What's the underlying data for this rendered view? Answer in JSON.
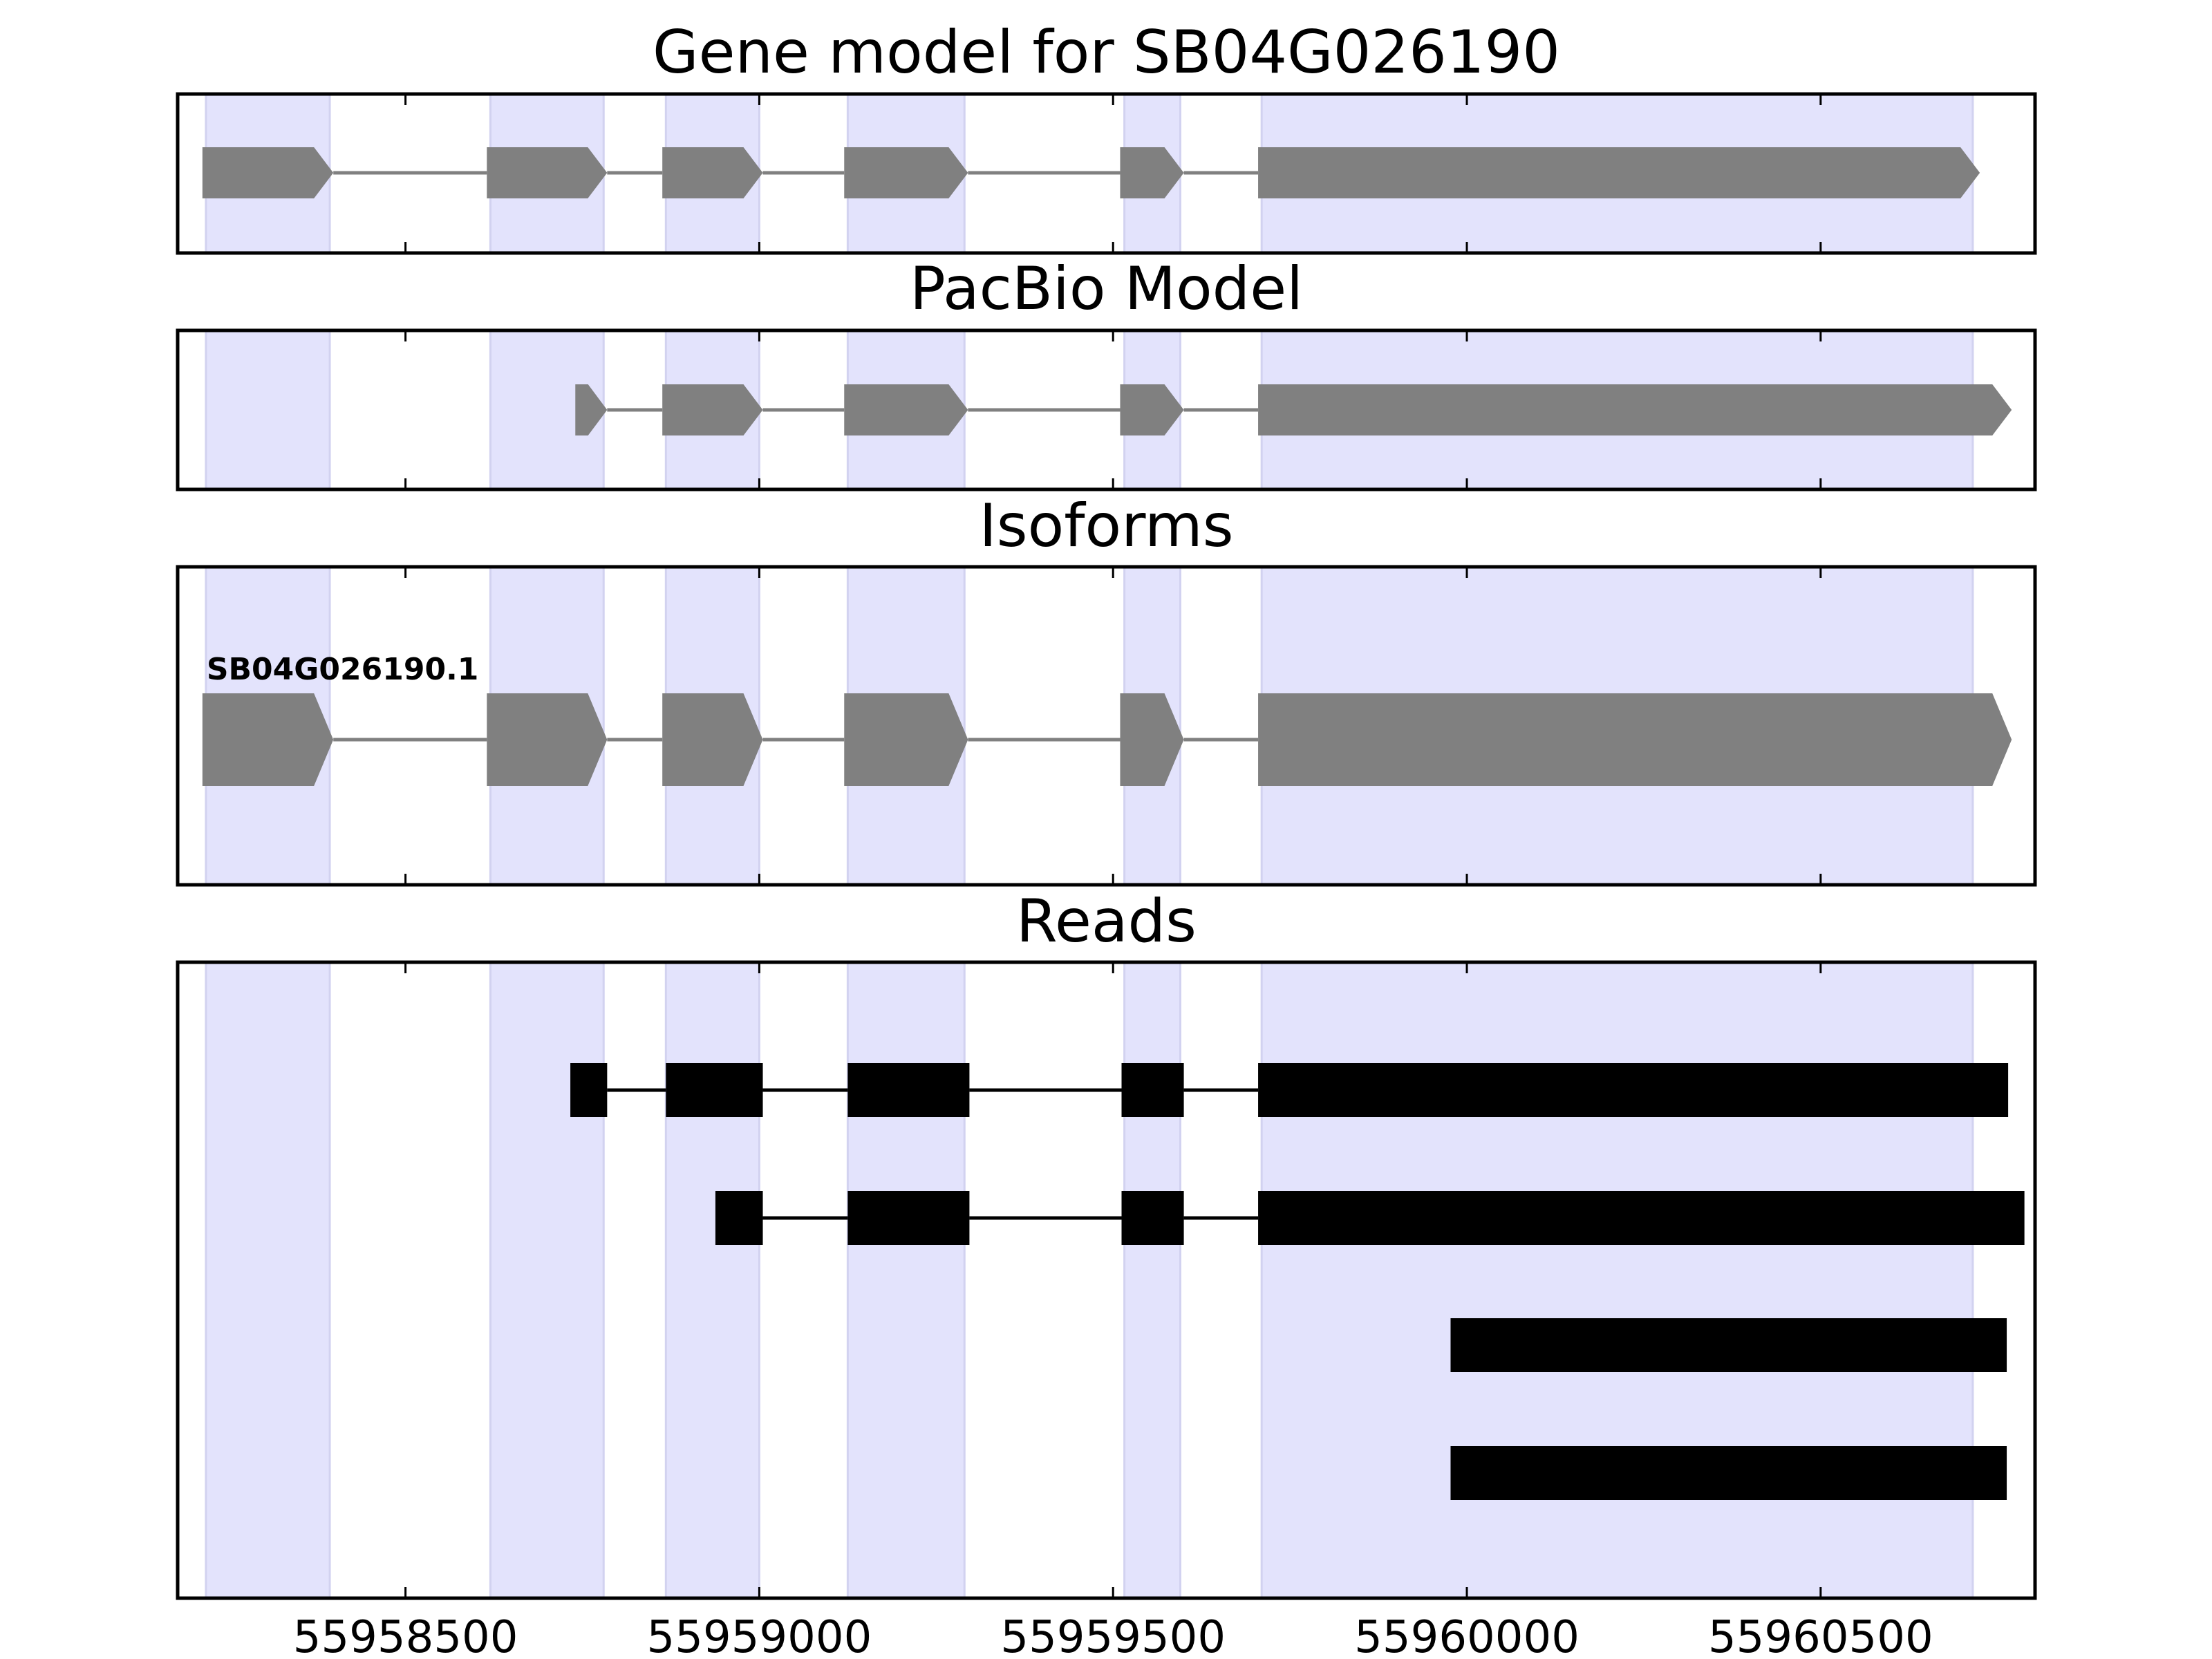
{
  "chart_data": {
    "type": "gene-structure",
    "title": "Gene model for SB04G026190",
    "x_axis": {
      "range": [
        55958178,
        55960803
      ],
      "ticks": [
        55958500,
        55959000,
        55959500,
        55960000,
        55960500
      ],
      "tick_labels": [
        "55958500",
        "55959000",
        "55959500",
        "55960000",
        "55960500"
      ]
    },
    "shaded_regions": [
      [
        55958218,
        55958393
      ],
      [
        55958620,
        55958780
      ],
      [
        55958868,
        55959000
      ],
      [
        55959125,
        55959290
      ],
      [
        55959516,
        55959595
      ],
      [
        55959710,
        55960715
      ]
    ],
    "panels": [
      {
        "name": "gene-model",
        "title": "Gene model for SB04G026190",
        "style": "arrow",
        "tracks": [
          {
            "label": "",
            "exons": [
              [
                55958213,
                55958398
              ],
              [
                55958615,
                55958785
              ],
              [
                55958863,
                55959005
              ],
              [
                55959120,
                55959295
              ],
              [
                55959510,
                55959600
              ],
              [
                55959705,
                55960725
              ]
            ]
          }
        ]
      },
      {
        "name": "pacbio-model",
        "title": "PacBio Model",
        "style": "arrow",
        "tracks": [
          {
            "label": "",
            "exons": [
              [
                55958740,
                55958785
              ],
              [
                55958863,
                55959005
              ],
              [
                55959120,
                55959295
              ],
              [
                55959510,
                55959600
              ],
              [
                55959705,
                55960770
              ]
            ]
          }
        ]
      },
      {
        "name": "isoforms",
        "title": "Isoforms",
        "style": "arrow",
        "tracks": [
          {
            "label": "SB04G026190.1",
            "exons": [
              [
                55958213,
                55958398
              ],
              [
                55958615,
                55958785
              ],
              [
                55958863,
                55959005
              ],
              [
                55959120,
                55959295
              ],
              [
                55959510,
                55959600
              ],
              [
                55959705,
                55960770
              ]
            ]
          }
        ]
      },
      {
        "name": "reads",
        "title": "Reads",
        "style": "block",
        "tracks": [
          {
            "label": "",
            "exons": [
              [
                55958733,
                55958785
              ],
              [
                55958868,
                55959005
              ],
              [
                55959125,
                55959297
              ],
              [
                55959512,
                55959600
              ],
              [
                55959705,
                55960765
              ]
            ]
          },
          {
            "label": "",
            "exons": [
              [
                55958938,
                55959005
              ],
              [
                55959125,
                55959297
              ],
              [
                55959512,
                55959600
              ],
              [
                55959705,
                55960788
              ]
            ]
          },
          {
            "label": "",
            "exons": [
              [
                55959977,
                55960763
              ]
            ]
          },
          {
            "label": "",
            "exons": [
              [
                55959977,
                55960763
              ]
            ]
          }
        ]
      }
    ],
    "colors": {
      "shade": "#e3e3fc",
      "shade_edge": "#d2d2f0",
      "model_feature": "#808080",
      "read_feature": "#000000"
    }
  }
}
